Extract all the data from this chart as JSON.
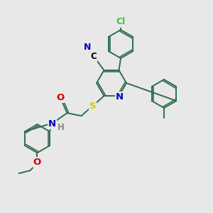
{
  "background_color": "#e8e8e8",
  "bond_color": "#2d6e4e",
  "atom_colors": {
    "N": "#0000cc",
    "O": "#cc0000",
    "S": "#cccc00",
    "Cl": "#33cc33",
    "H": "#888888",
    "C": "#000000"
  },
  "figsize": [
    3.0,
    3.0
  ],
  "dpi": 100,
  "xlim": [
    0,
    300
  ],
  "ylim": [
    0,
    300
  ],
  "lw": 1.4,
  "r_hex": 20,
  "font_size_atom": 8.5
}
